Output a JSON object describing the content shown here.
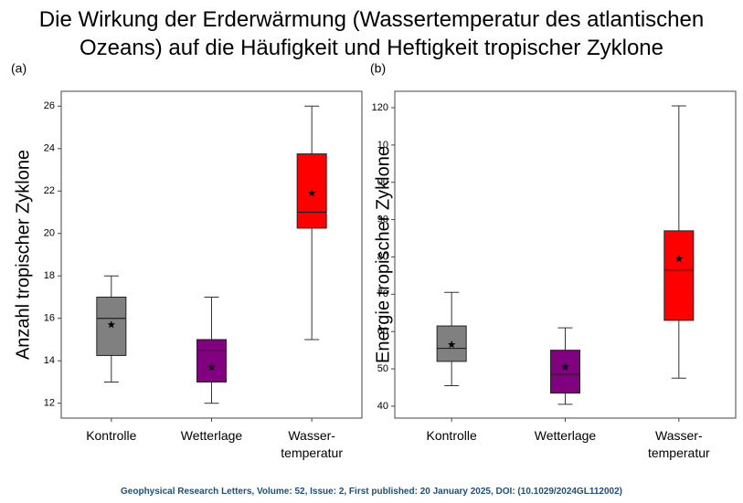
{
  "title": "Die Wirkung der Erderwärmung (Wassertemperatur des atlantischen Ozeans) auf die Häufigkeit und Heftigkeit tropischer Zyklone",
  "source": "Geophysical Research Letters, Volume: 52, Issue: 2, First published: 20 January 2025, DOI: (10.1029/2024GL112002)",
  "chart_data": [
    {
      "type": "box",
      "panel_label": "(a)",
      "ylabel": "Anzahl tropischer Zyklone",
      "categories": [
        "Kontrolle",
        "Wetterlage",
        "Wasser-\ntemperatur"
      ],
      "colors": [
        "#808080",
        "#800080",
        "#ff0000"
      ],
      "boxes": [
        {
          "low": 13,
          "q1": 14.25,
          "median": 16,
          "q3": 17,
          "high": 18,
          "mean": 15.7
        },
        {
          "low": 12,
          "q1": 13,
          "median": 14.5,
          "q3": 15,
          "high": 17,
          "mean": 13.7
        },
        {
          "low": 15,
          "q1": 20.25,
          "median": 21,
          "q3": 23.75,
          "high": 26,
          "mean": 21.9
        }
      ],
      "ylim": [
        11.3,
        26.7
      ],
      "yticks": [
        12,
        14,
        16,
        18,
        20,
        22,
        24,
        26
      ]
    },
    {
      "type": "box",
      "panel_label": "(b)",
      "ylabel": "Energie tropischer Zyklone",
      "categories": [
        "Kontrolle",
        "Wetterlage",
        "Wasser-\ntemperatur"
      ],
      "colors": [
        "#808080",
        "#800080",
        "#ff0000"
      ],
      "boxes": [
        {
          "low": 45.5,
          "q1": 52,
          "median": 55.5,
          "q3": 61.5,
          "high": 70.5,
          "mean": 56.5
        },
        {
          "low": 40.5,
          "q1": 43.5,
          "median": 48.5,
          "q3": 55,
          "high": 61,
          "mean": 50.5
        },
        {
          "low": 47.5,
          "q1": 63,
          "median": 76.5,
          "q3": 87,
          "high": 120.5,
          "mean": 79.5
        }
      ],
      "ylim": [
        36.8,
        124.4
      ],
      "yticks": [
        40,
        50,
        60,
        70,
        80,
        90,
        {
          "value": 100,
          "label": "00"
        },
        {
          "value": 110,
          "label": "10"
        },
        120
      ]
    }
  ]
}
